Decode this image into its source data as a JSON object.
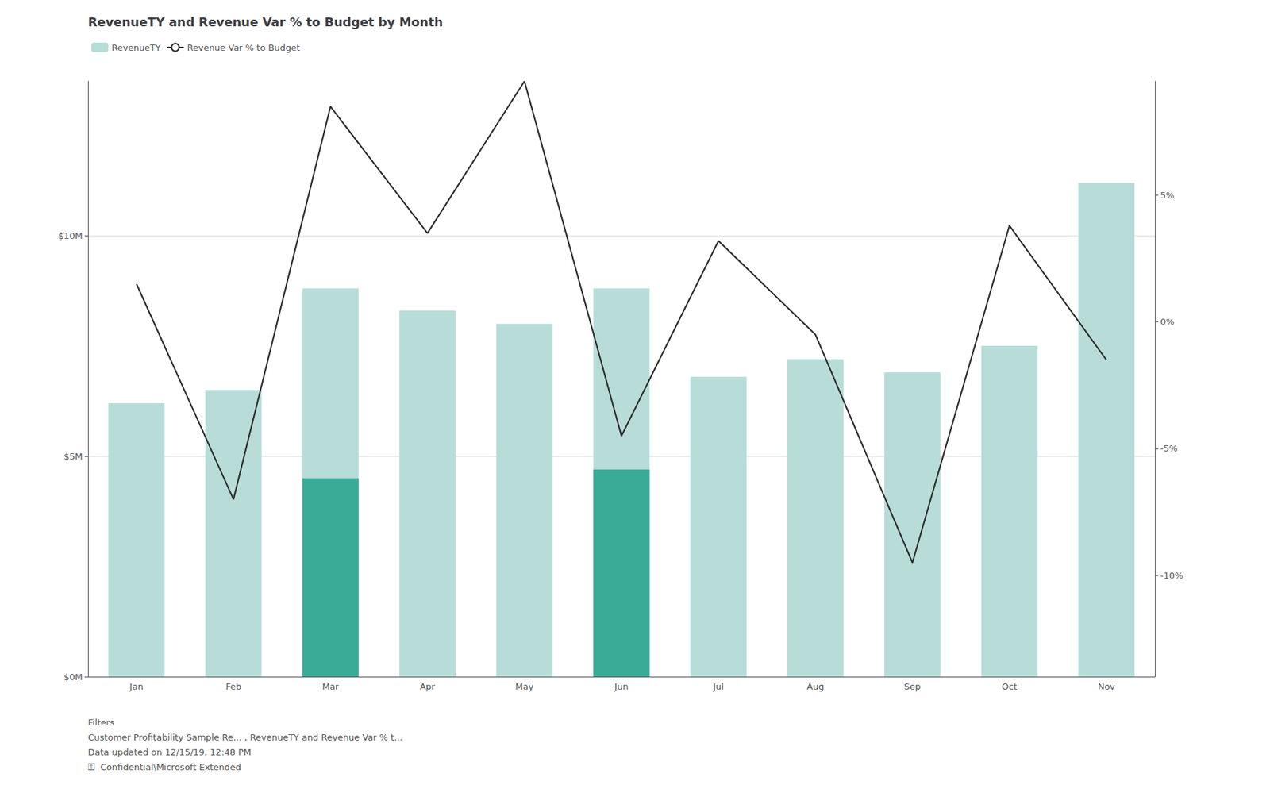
{
  "chart_data": {
    "type": "bar",
    "title": "RevenueTY and Revenue Var % to Budget by Month",
    "categories": [
      "Jan",
      "Feb",
      "Mar",
      "Apr",
      "May",
      "Jun",
      "Jul",
      "Aug",
      "Sep",
      "Oct",
      "Nov"
    ],
    "series": [
      {
        "name": "RevenueTY",
        "type": "bar",
        "color": "#b8ddd8",
        "values": [
          6.2,
          6.5,
          8.8,
          8.3,
          8.0,
          8.8,
          6.8,
          7.2,
          6.9,
          7.5,
          11.2
        ]
      },
      {
        "type": "bar",
        "color": "#3aab96",
        "values": [
          0.0,
          0.0,
          4.5,
          0.0,
          0.0,
          4.7,
          0.0,
          0.0,
          0.0,
          0.0,
          0.0
        ]
      },
      {
        "name": "Revenue Var % to Budget",
        "type": "line",
        "color": "#2d2d2d",
        "axis": "y2",
        "values": [
          1.5,
          -7.0,
          8.5,
          3.5,
          9.5,
          -4.5,
          3.2,
          -0.5,
          -9.5,
          3.8,
          -1.5
        ]
      }
    ],
    "ylim": [
      0,
      13.5
    ],
    "yticks": [
      {
        "value": 0,
        "label": "$0M"
      },
      {
        "value": 5,
        "label": "$5M"
      },
      {
        "value": 10,
        "label": "$10M"
      }
    ],
    "y2lim": [
      -14,
      9.5
    ],
    "y2ticks": [
      {
        "value": -10,
        "label": "-10%"
      },
      {
        "value": -5,
        "label": "-5%"
      },
      {
        "value": 0,
        "label": "0%"
      },
      {
        "value": 5,
        "label": "5%"
      }
    ],
    "grid": true,
    "legend": "upper left",
    "annotations": [
      "Filters",
      "Customer Profitability Sample Re... , RevenueTY and Revenue Var % t...",
      "Data updated on 12/15/19, 12:48 PM",
      "⚿  Confidential\\Microsoft Extended"
    ]
  }
}
